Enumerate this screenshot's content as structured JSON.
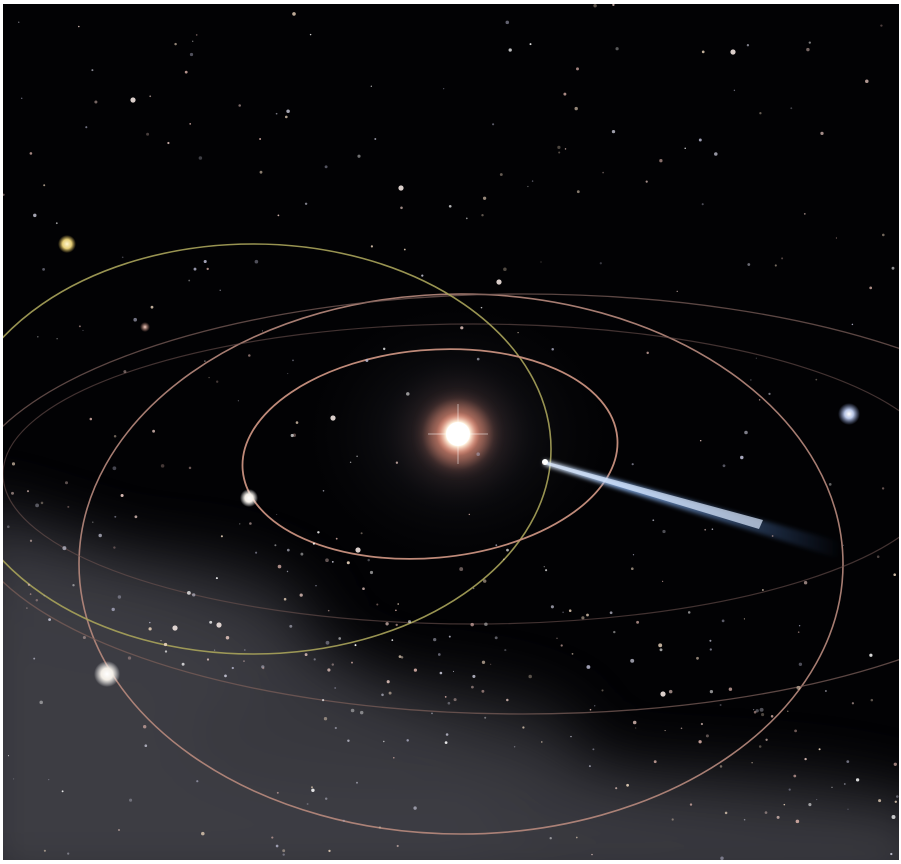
{
  "scene": {
    "subject": "solar-system-illustration",
    "colors": {
      "space": "#020204",
      "star_core": "#ffffff",
      "star_glow": "#ffd9b0",
      "star_halo": "#c8706a",
      "orbit_inner": "#c9917f",
      "orbit_tilted": "#a8a35a",
      "comet_tail": "#6a9be0",
      "milky_way": "#8a8a92"
    }
  }
}
